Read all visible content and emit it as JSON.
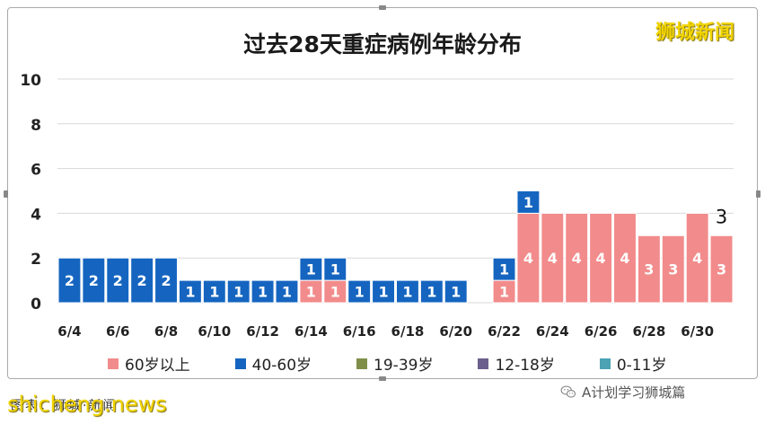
{
  "chart_data": {
    "type": "bar",
    "stacked": true,
    "title": "过去28天重症病例年龄分布",
    "categories": [
      "6/4",
      "6/5",
      "6/6",
      "6/7",
      "6/8",
      "6/9",
      "6/10",
      "6/11",
      "6/12",
      "6/13",
      "6/14",
      "6/15",
      "6/16",
      "6/17",
      "6/18",
      "6/19",
      "6/20",
      "6/21",
      "6/22",
      "6/23",
      "6/24",
      "6/25",
      "6/26",
      "6/27",
      "6/28",
      "6/29",
      "6/30",
      "7/1"
    ],
    "x_tick_labels": [
      "6/4",
      "6/6",
      "6/8",
      "6/10",
      "6/12",
      "6/14",
      "6/16",
      "6/18",
      "6/20",
      "6/22",
      "6/24",
      "6/26",
      "6/28",
      "6/30"
    ],
    "y_ticks": [
      "10",
      "8",
      "6",
      "4",
      "2",
      "0"
    ],
    "ylim": [
      0,
      10
    ],
    "grid": true,
    "legend_position": "bottom",
    "series": [
      {
        "name": "60岁以上",
        "color": "#f28b8b",
        "values": [
          0,
          0,
          0,
          0,
          0,
          0,
          0,
          0,
          0,
          0,
          1,
          1,
          0,
          0,
          0,
          0,
          0,
          0,
          1,
          4,
          4,
          4,
          4,
          4,
          3,
          3,
          4,
          3
        ]
      },
      {
        "name": "40-60岁",
        "color": "#1565c0",
        "values": [
          2,
          2,
          2,
          2,
          2,
          1,
          1,
          1,
          1,
          1,
          1,
          1,
          1,
          1,
          1,
          1,
          1,
          0,
          1,
          1,
          0,
          0,
          0,
          0,
          0,
          0,
          0,
          0
        ]
      },
      {
        "name": "19-39岁",
        "color": "#7f8f4a",
        "values": [
          0,
          0,
          0,
          0,
          0,
          0,
          0,
          0,
          0,
          0,
          0,
          0,
          0,
          0,
          0,
          0,
          0,
          0,
          0,
          0,
          0,
          0,
          0,
          0,
          0,
          0,
          0,
          0
        ]
      },
      {
        "name": "12-18岁",
        "color": "#6b5f8e",
        "values": [
          0,
          0,
          0,
          0,
          0,
          0,
          0,
          0,
          0,
          0,
          0,
          0,
          0,
          0,
          0,
          0,
          0,
          0,
          0,
          0,
          0,
          0,
          0,
          0,
          0,
          0,
          0,
          0
        ]
      },
      {
        "name": "0-11岁",
        "color": "#4ba3b4",
        "values": [
          0,
          0,
          0,
          0,
          0,
          0,
          0,
          0,
          0,
          0,
          0,
          0,
          0,
          0,
          0,
          0,
          0,
          0,
          0,
          0,
          0,
          0,
          0,
          0,
          0,
          0,
          0,
          0
        ]
      }
    ],
    "annotations": [
      {
        "category": "7/1",
        "text": "3"
      }
    ]
  },
  "watermarks": {
    "top_right": "狮城新闻",
    "bottom_left": "shicheng.news",
    "bottom_left_caption": "图表：狮城·新闻"
  },
  "wechat": {
    "label": "A计划学习狮城篇",
    "icon": "wechat-icon"
  }
}
